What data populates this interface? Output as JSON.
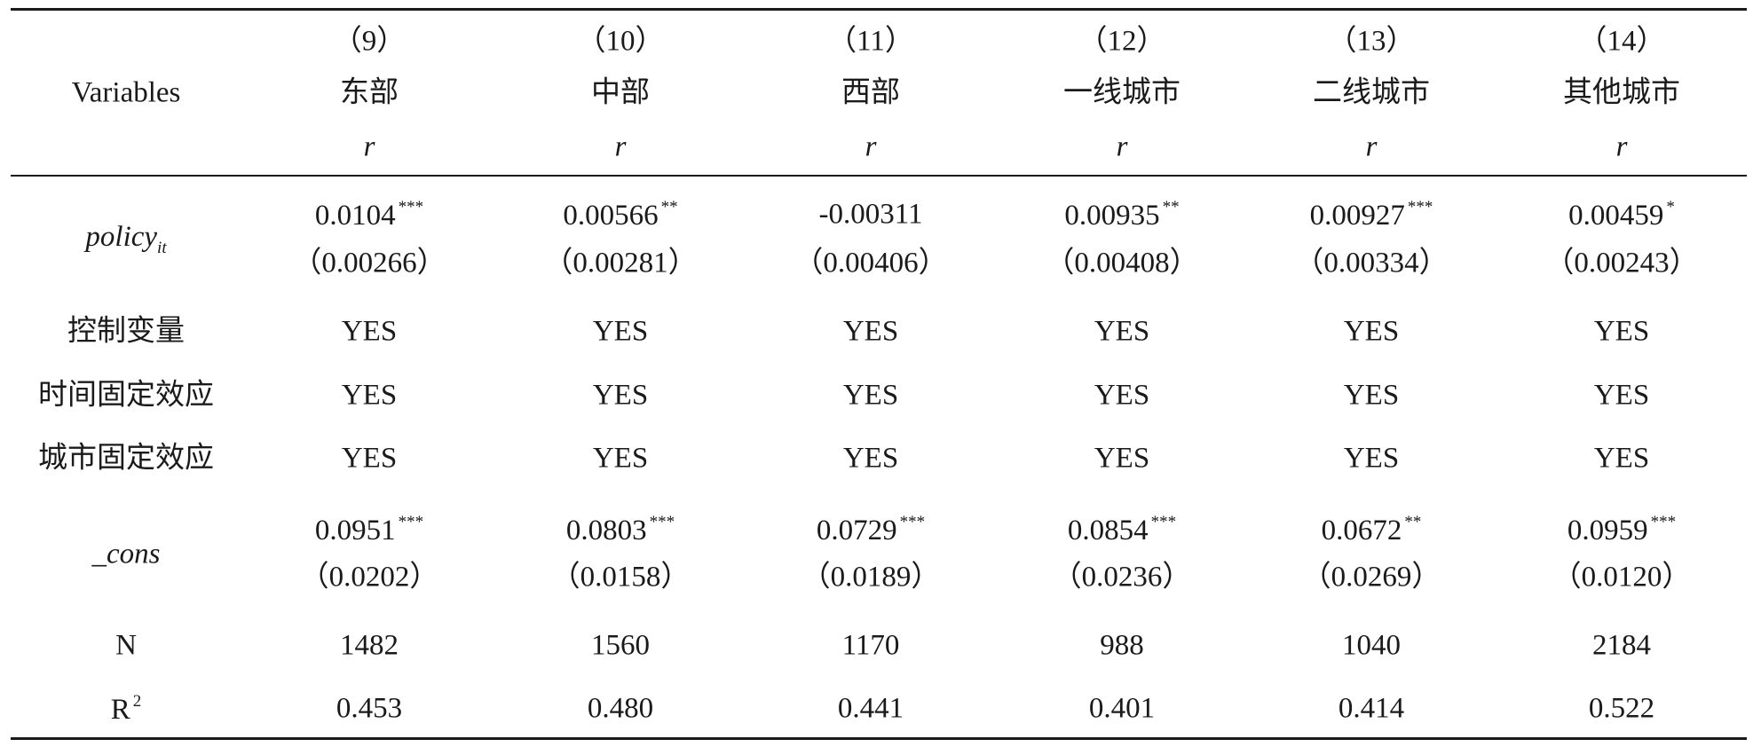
{
  "table": {
    "header": {
      "variables": "Variables",
      "columns": [
        {
          "number": "（9）",
          "name": "东部",
          "dependent": "r"
        },
        {
          "number": "（10）",
          "name": "中部",
          "dependent": "r"
        },
        {
          "number": "（11）",
          "name": "西部",
          "dependent": "r"
        },
        {
          "number": "（12）",
          "name": "一线城市",
          "dependent": "r"
        },
        {
          "number": "（13）",
          "name": "二线城市",
          "dependent": "r"
        },
        {
          "number": "（14）",
          "name": "其他城市",
          "dependent": "r"
        }
      ]
    },
    "rows": [
      {
        "label": "policy",
        "label_subscript": "it",
        "cells": [
          {
            "coef": "0.0104",
            "stars": "***",
            "se": "（0.00266）"
          },
          {
            "coef": "0.00566",
            "stars": "**",
            "se": "（0.00281）"
          },
          {
            "coef": "-0.00311",
            "se": "（0.00406）"
          },
          {
            "coef": "0.00935",
            "stars": "**",
            "se": "（0.00408）"
          },
          {
            "coef": "0.00927",
            "stars": "***",
            "se": "（0.00334）"
          },
          {
            "coef": "0.00459",
            "stars": "*",
            "se": "（0.00243）"
          }
        ]
      },
      {
        "label": "控制变量",
        "cells": [
          "YES",
          "YES",
          "YES",
          "YES",
          "YES",
          "YES"
        ]
      },
      {
        "label": "时间固定效应",
        "cells": [
          "YES",
          "YES",
          "YES",
          "YES",
          "YES",
          "YES"
        ]
      },
      {
        "label": "城市固定效应",
        "cells": [
          "YES",
          "YES",
          "YES",
          "YES",
          "YES",
          "YES"
        ]
      },
      {
        "label": "_cons",
        "cells": [
          {
            "coef": "0.0951",
            "stars": "***",
            "se": "（0.0202）"
          },
          {
            "coef": "0.0803",
            "stars": "***",
            "se": "（0.0158）"
          },
          {
            "coef": "0.0729",
            "stars": "***",
            "se": "（0.0189）"
          },
          {
            "coef": "0.0854",
            "stars": "***",
            "se": "（0.0236）"
          },
          {
            "coef": "0.0672",
            "stars": "**",
            "se": "（0.0269）"
          },
          {
            "coef": "0.0959",
            "stars": "***",
            "se": "（0.0120）"
          }
        ]
      },
      {
        "label": "N",
        "cells": [
          "1482",
          "1560",
          "1170",
          "988",
          "1040",
          "2184"
        ]
      },
      {
        "label": "R",
        "label_superscript": "2",
        "cells": [
          "0.453",
          "0.480",
          "0.441",
          "0.401",
          "0.414",
          "0.522"
        ]
      }
    ]
  }
}
